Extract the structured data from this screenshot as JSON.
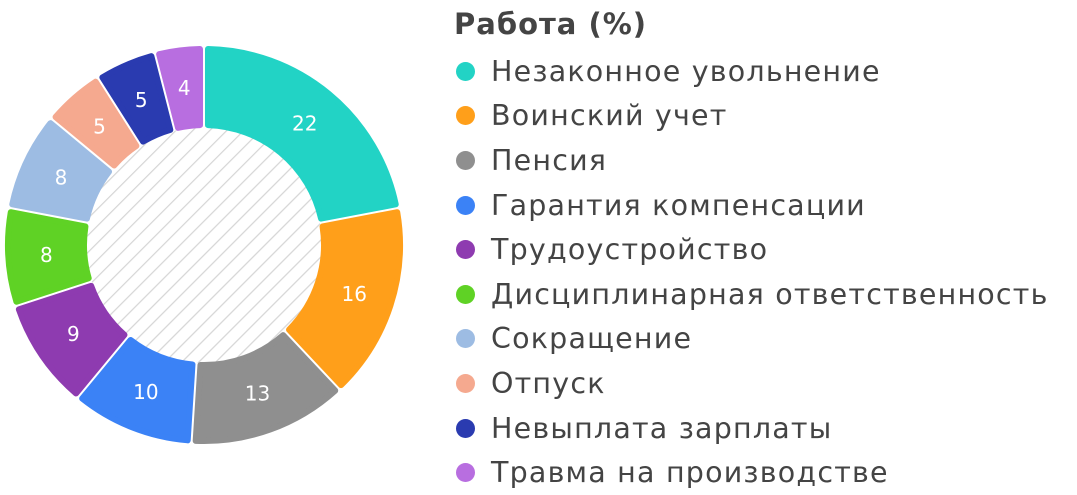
{
  "chart_data": {
    "type": "pie",
    "variant": "donut",
    "title": "Работа (%)",
    "categories": [
      "Незаконное увольнение",
      "Воинский учет",
      "Пенсия",
      "Гарантия компенсации",
      "Трудоустройство",
      "Дисциплинарная ответственность",
      "Сокращение",
      "Отпуск",
      "Невыплата зарплаты",
      "Травма на производстве"
    ],
    "values": [
      22,
      16,
      13,
      10,
      9,
      8,
      8,
      5,
      5,
      4
    ],
    "colors": [
      "#22d3c5",
      "#ff9f1a",
      "#8f8f8f",
      "#3b82f6",
      "#8e3bb0",
      "#5fd225",
      "#9dbce3",
      "#f5a98f",
      "#2a3bb0",
      "#b86ee0"
    ],
    "center_fill": "hatched",
    "legend_placement": "right"
  }
}
